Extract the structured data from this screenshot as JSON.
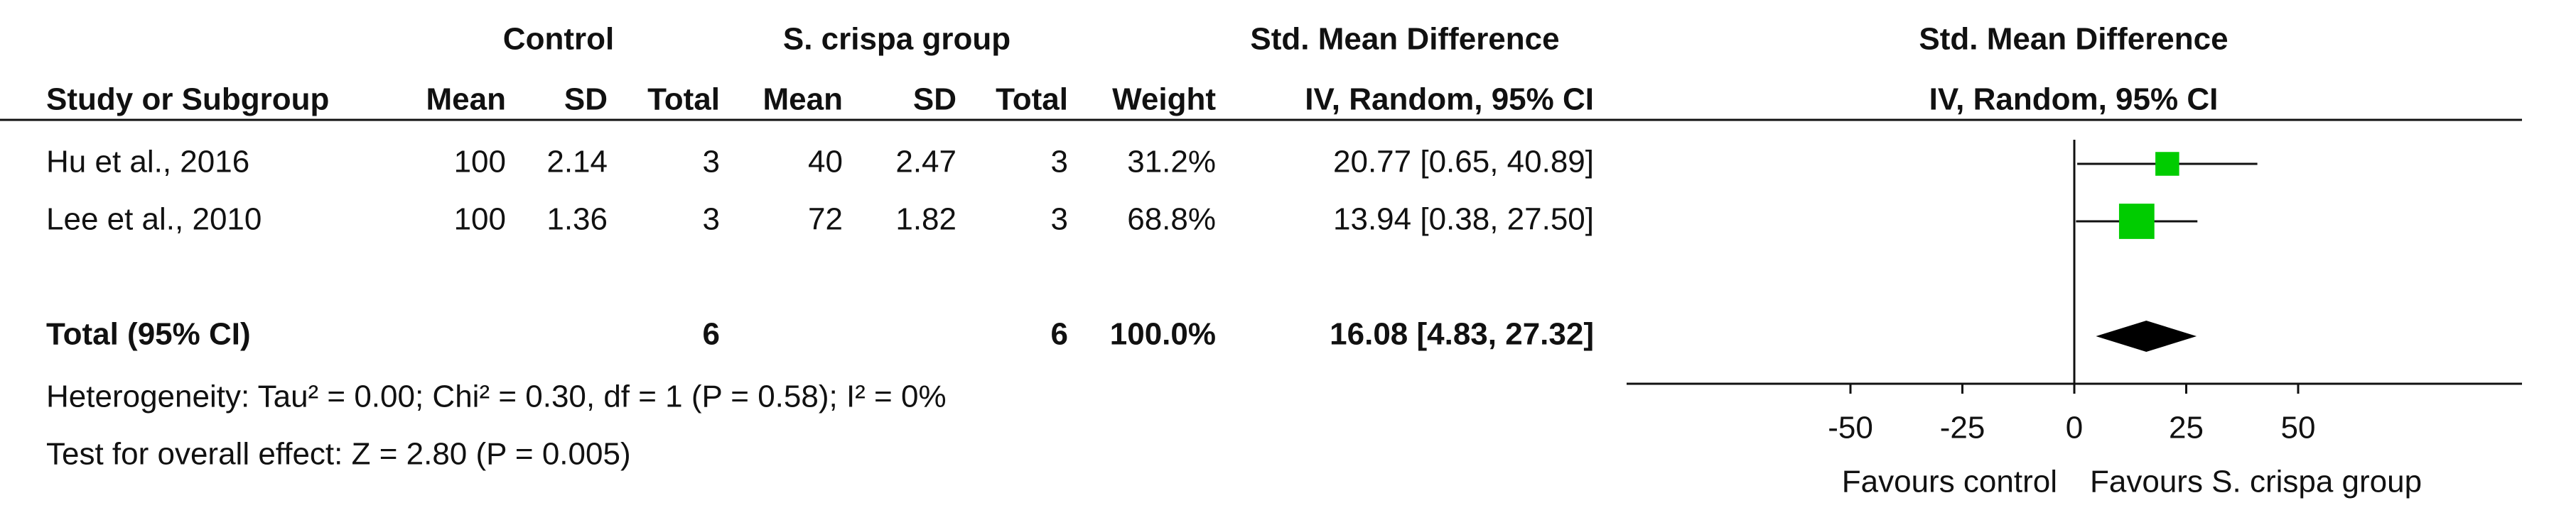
{
  "chart_data": {
    "type": "forest",
    "group_headers": [
      "Control",
      "S. crispa group"
    ],
    "effect_title": "Std. Mean Difference",
    "plot_title": "Std. Mean Difference",
    "plot_method": "IV, Random, 95% CI",
    "columns": [
      "Study or Subgroup",
      "Mean",
      "SD",
      "Total",
      "Mean",
      "SD",
      "Total",
      "Weight",
      "IV, Random, 95% CI"
    ],
    "studies": [
      {
        "name": "Hu et al., 2016",
        "control": [
          100,
          2.14,
          3
        ],
        "experimental": [
          40,
          2.47,
          3
        ],
        "weight": 31.2,
        "weight_label": "31.2%",
        "smd": 20.77,
        "ci": [
          0.65,
          40.89
        ],
        "effect_label": "20.77 [0.65, 40.89]"
      },
      {
        "name": "Lee et al., 2010",
        "control": [
          100,
          1.36,
          3
        ],
        "experimental": [
          72,
          1.82,
          3
        ],
        "weight": 68.8,
        "weight_label": "68.8%",
        "smd": 13.94,
        "ci": [
          0.38,
          27.5
        ],
        "effect_label": "13.94 [0.38, 27.50]"
      }
    ],
    "total": {
      "name": "Total (95% CI)",
      "control_total": 6,
      "experimental_total": 6,
      "weight": 100.0,
      "weight_label": "100.0%",
      "smd": 16.08,
      "ci": [
        4.83,
        27.32
      ],
      "effect_label": "16.08 [4.83, 27.32]"
    },
    "heterogeneity": "Heterogeneity: Tau² = 0.00; Chi² = 0.30, df = 1 (P = 0.58); I² = 0%",
    "overall_effect": "Test for overall effect: Z = 2.80 (P = 0.005)",
    "xlim": [
      -100,
      100
    ],
    "xticks": [
      -50,
      -25,
      0,
      25,
      50
    ],
    "xlabel_left": "Favours control",
    "xlabel_right": "Favours S. crispa group",
    "color": "#00cc00",
    "diamond_color": "#000000"
  }
}
